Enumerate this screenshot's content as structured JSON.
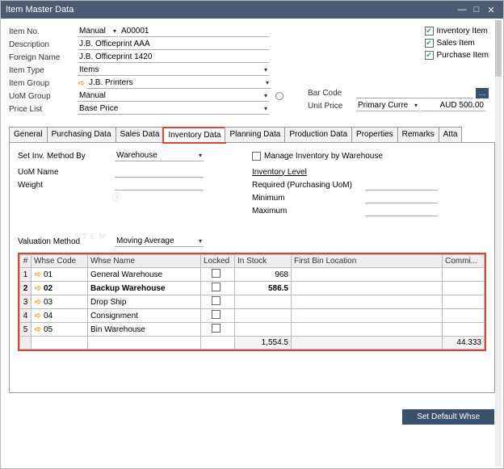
{
  "window": {
    "title": "Item Master Data"
  },
  "header": {
    "itemNoLbl": "Item No.",
    "itemNoMode": "Manual",
    "itemNoVal": "A00001",
    "descLbl": "Description",
    "descVal": "J.B. Officeprint AAA",
    "foreignLbl": "Foreign Name",
    "foreignVal": "J.B. Officeprint 1420",
    "itemTypeLbl": "Item Type",
    "itemTypeVal": "Items",
    "itemGroupLbl": "Item Group",
    "itemGroupVal": "J.B. Printers",
    "uomGroupLbl": "UoM Group",
    "uomGroupVal": "Manual",
    "priceListLbl": "Price List",
    "priceListVal": "Base Price"
  },
  "flags": {
    "inventory": "Inventory Item",
    "sales": "Sales Item",
    "purchase": "Purchase Item"
  },
  "barunit": {
    "barcodeLbl": "Bar Code",
    "barcodeVal": "",
    "unitPriceLbl": "Unit Price",
    "unitPriceCur": "Primary Curre",
    "unitPriceVal": "AUD 500.00"
  },
  "tabs": {
    "general": "General",
    "purchasing": "Purchasing Data",
    "sales": "Sales Data",
    "inventory": "Inventory Data",
    "planning": "Planning Data",
    "production": "Production Data",
    "properties": "Properties",
    "remarks": "Remarks",
    "attach": "Atta"
  },
  "inv": {
    "setMethodLbl": "Set Inv. Method By",
    "setMethodVal": "Warehouse",
    "manageLbl": "Manage Inventory by Warehouse",
    "invLevelLbl": "Inventory Level",
    "reqLbl": "Required (Purchasing UoM)",
    "minLbl": "Minimum",
    "maxLbl": "Maximum",
    "uomNameLbl": "UoM Name",
    "weightLbl": "Weight",
    "valMethodLbl": "Valuation Method",
    "valMethodVal": "Moving Average"
  },
  "whse": {
    "hNum": "#",
    "hCode": "Whse Code",
    "hName": "Whse Name",
    "hLocked": "Locked",
    "hStock": "In Stock",
    "hBin": "First Bin Location",
    "hComm": "Commi...",
    "rows": [
      {
        "i": "1",
        "code": "01",
        "name": "General Warehouse",
        "stock": "968"
      },
      {
        "i": "2",
        "code": "02",
        "name": "Backup Warehouse",
        "stock": "586.5"
      },
      {
        "i": "3",
        "code": "03",
        "name": "Drop Ship",
        "stock": ""
      },
      {
        "i": "4",
        "code": "04",
        "name": "Consignment",
        "stock": ""
      },
      {
        "i": "5",
        "code": "05",
        "name": "Bin Warehouse",
        "stock": ""
      }
    ],
    "totStock": "1,554.5",
    "totComm": "44.333"
  },
  "footer": {
    "setDefault": "Set Default Whse"
  },
  "watermark": {
    "main": "STEM",
    "sub1": "INNOVATION",
    "sub2": "DESIGN",
    "sub3": "VALUE"
  }
}
